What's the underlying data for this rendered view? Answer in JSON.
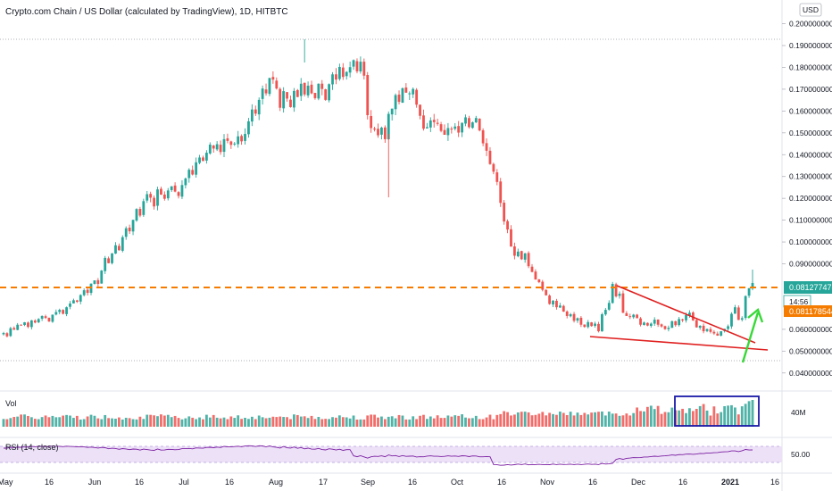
{
  "header": {
    "title": "Crypto.com Chain / US Dollar (calculated by TradingView), 1D, HITBTC",
    "currency": "USD"
  },
  "chart_data": {
    "type": "candlestick",
    "price_axis": {
      "ylim": [
        0.035,
        0.2035
      ],
      "ticks": [
        "0.200000000",
        "0.190000000",
        "0.180000000",
        "0.170000000",
        "0.160000000",
        "0.150000000",
        "0.140000000",
        "0.130000000",
        "0.120000000",
        "0.110000000",
        "0.100000000",
        "0.090000000",
        "0.060000000",
        "0.050000000",
        "0.040000000"
      ],
      "tick_values": [
        0.2,
        0.19,
        0.18,
        0.17,
        0.16,
        0.15,
        0.14,
        0.13,
        0.12,
        0.11,
        0.1,
        0.09,
        0.06,
        0.05,
        0.04
      ]
    },
    "price_tags": [
      {
        "label": "0.081277478",
        "value": 0.0813,
        "color": "#26a69a"
      },
      {
        "label": "14:56",
        "value": 0.0778,
        "color": "#ffffff"
      },
      {
        "label": "0.081178544",
        "value": 0.0733,
        "color": "#f57c00"
      }
    ],
    "date_labels": [
      "May",
      "16",
      "Jun",
      "16",
      "Jul",
      "16",
      "Aug",
      "17",
      "Sep",
      "16",
      "Oct",
      "16",
      "Nov",
      "16",
      "Dec",
      "16",
      "2021",
      "16"
    ],
    "closes": [
      0.0583,
      0.0568,
      0.0605,
      0.0598,
      0.0621,
      0.0618,
      0.0632,
      0.0611,
      0.0641,
      0.0631,
      0.0647,
      0.0661,
      0.0652,
      0.0636,
      0.0667,
      0.0679,
      0.0689,
      0.0671,
      0.0701,
      0.0718,
      0.0733,
      0.0726,
      0.0757,
      0.0779,
      0.0767,
      0.0809,
      0.0824,
      0.0808,
      0.0869,
      0.0927,
      0.0903,
      0.0948,
      0.0985,
      0.0962,
      0.1022,
      0.1063,
      0.1049,
      0.1101,
      0.1151,
      0.1121,
      0.1187,
      0.1219,
      0.1203,
      0.1163,
      0.1241,
      0.1217,
      0.1198,
      0.1236,
      0.1255,
      0.1231,
      0.1211,
      0.1261,
      0.1291,
      0.1331,
      0.1309,
      0.1365,
      0.1387,
      0.1371,
      0.1409,
      0.1446,
      0.1428,
      0.1448,
      0.1412,
      0.1471,
      0.1463,
      0.1445,
      0.1451,
      0.1484,
      0.1461,
      0.1495,
      0.1553,
      0.1607,
      0.1588,
      0.1651,
      0.1703,
      0.1681,
      0.1751,
      0.1744,
      0.1703,
      0.1615,
      0.1691,
      0.1657,
      0.1618,
      0.1692,
      0.1664,
      0.1725,
      0.1676,
      0.1716,
      0.1681,
      0.1659,
      0.1725,
      0.1701,
      0.1651,
      0.1723,
      0.1768,
      0.1744,
      0.1802,
      0.1756,
      0.1779,
      0.1801,
      0.1833,
      0.1782,
      0.1826,
      0.1762,
      0.1581,
      0.1522,
      0.1517,
      0.1489,
      0.1524,
      0.1471,
      0.1587,
      0.1611,
      0.1673,
      0.1642,
      0.1704,
      0.1684,
      0.1681,
      0.1701,
      0.1629,
      0.1578,
      0.1519,
      0.1526,
      0.1557,
      0.1549,
      0.1541,
      0.1509,
      0.1491,
      0.1522,
      0.1516,
      0.1529,
      0.1501,
      0.1546,
      0.1571,
      0.1526,
      0.1548,
      0.1568,
      0.1511,
      0.1452,
      0.1418,
      0.1357,
      0.1322,
      0.1275,
      0.1179,
      0.1094,
      0.1057,
      0.0979,
      0.0937,
      0.0956,
      0.0921,
      0.0948,
      0.0889,
      0.0863,
      0.0828,
      0.0816,
      0.0781,
      0.0756,
      0.0716,
      0.0731,
      0.0701,
      0.0709,
      0.0681,
      0.0661,
      0.0669,
      0.0639,
      0.0651,
      0.0621,
      0.0611,
      0.0633,
      0.0615,
      0.0626,
      0.0591,
      0.0669,
      0.0689,
      0.0721,
      0.0808,
      0.0751,
      0.0763,
      0.0676,
      0.0661,
      0.0656,
      0.0667,
      0.0651,
      0.0621,
      0.0631,
      0.0617,
      0.0626,
      0.0644,
      0.0621,
      0.0613,
      0.0601,
      0.0607,
      0.0637,
      0.0619,
      0.0647,
      0.0641,
      0.0665,
      0.0676,
      0.0641,
      0.0609,
      0.0616,
      0.0591,
      0.0601,
      0.0588,
      0.0581,
      0.0571,
      0.0591,
      0.0602,
      0.0614,
      0.0671,
      0.0701,
      0.0643,
      0.0651,
      0.0752,
      0.0788,
      0.0812
    ]
  },
  "volume_pane": {
    "label": "Vol",
    "axis_label": "40M"
  },
  "rsi_pane": {
    "label": "RSI (14, close)",
    "axis_label": "50.00"
  },
  "annotations": {
    "dashed_level_color": "#f57c00",
    "trendline_color": "#e02020",
    "arrow_color": "#38d838",
    "box_color": "#1a1aa8"
  },
  "colors": {
    "up": "#26a69a",
    "down": "#ef5350",
    "rsi_line": "#7b1fa2",
    "rsi_band": "#ede1f7"
  }
}
